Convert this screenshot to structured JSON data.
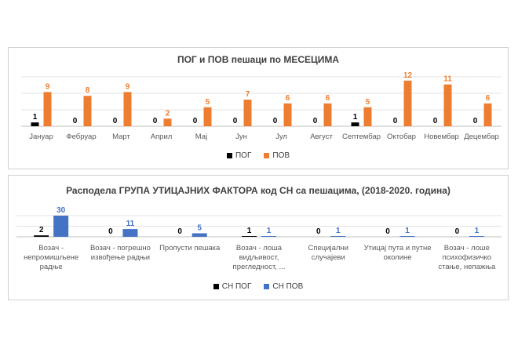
{
  "chart_data": [
    {
      "type": "bar",
      "title": "ПОГ и ПОВ пешаци по МЕСЕЦИМА",
      "categories": [
        "Јануар",
        "Фебруар",
        "Март",
        "Април",
        "Мај",
        "Јун",
        "Јул",
        "Август",
        "Септембар",
        "Октобар",
        "Новембар",
        "Децембар"
      ],
      "series": [
        {
          "name": "ПОГ",
          "values": [
            1,
            0,
            0,
            0,
            0,
            0,
            0,
            0,
            1,
            0,
            0,
            0
          ],
          "color": "#000000",
          "label_color": "#000000"
        },
        {
          "name": "ПОВ",
          "values": [
            9,
            8,
            9,
            2,
            5,
            7,
            6,
            6,
            5,
            12,
            11,
            6
          ],
          "color": "#ED7D31",
          "label_color": "#ED7D31"
        }
      ],
      "ylim": [
        0,
        13
      ],
      "grid": true,
      "legend": "bottom"
    },
    {
      "type": "bar",
      "title": "Расподела ГРУПА УТИЦАЈНИХ ФАКТОРА код СН са пешацима, (2018-2020. година)",
      "categories": [
        [
          "Возач -",
          "непромишљене",
          "радње"
        ],
        [
          "Возач - погрешно",
          "извођење радњи"
        ],
        [
          "Пропусти пешака"
        ],
        [
          "Возач - лоша",
          "видљивост,",
          "прегледност, ..."
        ],
        [
          "Специјални",
          "случајеви"
        ],
        [
          "Утицај пута и путне",
          "околине"
        ],
        [
          "Возач - лоше",
          "психофизичко",
          "стање, непажња"
        ]
      ],
      "series": [
        {
          "name": "СН ПОГ",
          "values": [
            2,
            0,
            0,
            1,
            0,
            0,
            0
          ],
          "color": "#000000",
          "label_color": "#000000"
        },
        {
          "name": "СН ПОВ",
          "values": [
            30,
            11,
            5,
            1,
            1,
            1,
            1
          ],
          "color": "#4472C4",
          "label_color": "#4472C4"
        }
      ],
      "ylim": [
        0,
        30
      ],
      "grid": true,
      "legend": "bottom"
    }
  ]
}
